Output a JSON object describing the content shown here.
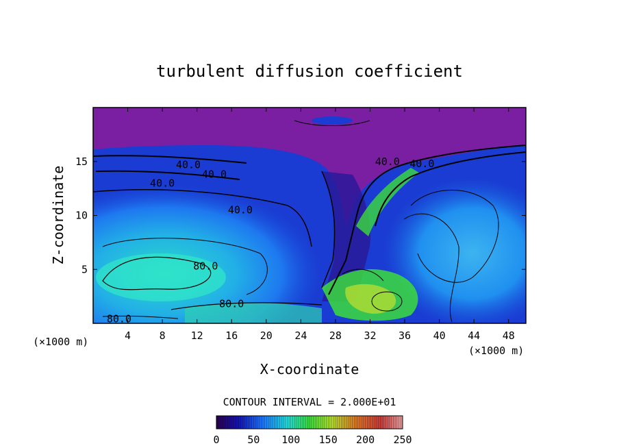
{
  "chart_data": {
    "type": "heatmap",
    "title": "turbulent diffusion coefficient",
    "xlabel": "X-coordinate",
    "ylabel": "Z-coordinate",
    "x_unit_left": "(×1000 m)",
    "x_unit_right": "(×1000 m)",
    "xlim": [
      0,
      50
    ],
    "ylim": [
      0,
      20
    ],
    "x_ticks": [
      4,
      8,
      12,
      16,
      20,
      24,
      28,
      32,
      36,
      40,
      44,
      48
    ],
    "y_ticks": [
      5,
      10,
      15
    ],
    "contour_interval_text": "CONTOUR INTERVAL = 2.000E+01",
    "colorbar": {
      "range": [
        0,
        250
      ],
      "ticks": [
        0,
        50,
        100,
        150,
        200,
        250
      ],
      "colors": [
        "#2a0050",
        "#1414b4",
        "#1e78ff",
        "#23dcdc",
        "#3cdc3c",
        "#b4dc32",
        "#dc7828",
        "#c83c3c",
        "#e6a0a0"
      ]
    },
    "contour_labels": [
      {
        "text": "40.0",
        "x": 11,
        "z": 14.7
      },
      {
        "text": "40.0",
        "x": 14,
        "z": 13.8
      },
      {
        "text": "40.0",
        "x": 8,
        "z": 13.0
      },
      {
        "text": "40.0",
        "x": 17,
        "z": 10.5
      },
      {
        "text": "80.0",
        "x": 13,
        "z": 5.3
      },
      {
        "text": "80.0",
        "x": 16,
        "z": 1.8
      },
      {
        "text": "80.0",
        "x": 3,
        "z": 0.4
      },
      {
        "text": "40.0",
        "x": 34,
        "z": 15.0
      },
      {
        "text": "40.0",
        "x": 38,
        "z": 14.8
      }
    ]
  }
}
